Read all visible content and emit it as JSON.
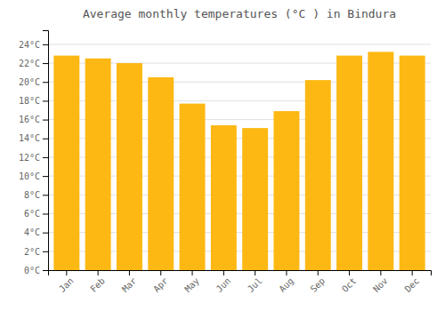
{
  "chart_data": {
    "type": "bar",
    "title": "Average monthly temperatures (°C ) in Bindura",
    "categories": [
      "Jan",
      "Feb",
      "Mar",
      "Apr",
      "May",
      "Jun",
      "Jul",
      "Aug",
      "Sep",
      "Oct",
      "Nov",
      "Dec"
    ],
    "values": [
      22.8,
      22.5,
      22.0,
      20.5,
      17.7,
      15.4,
      15.1,
      16.9,
      20.2,
      22.8,
      23.2,
      22.8
    ],
    "color": "#FDB813",
    "ylim": [
      0,
      25.5
    ],
    "yticks": [
      {
        "value": 0,
        "label": "0°C"
      },
      {
        "value": 2,
        "label": "2°C"
      },
      {
        "value": 4,
        "label": "4°C"
      },
      {
        "value": 6,
        "label": "6°C"
      },
      {
        "value": 8,
        "label": "8°C"
      },
      {
        "value": 10,
        "label": "10°C"
      },
      {
        "value": 12,
        "label": "12°C"
      },
      {
        "value": 14,
        "label": "14°C"
      },
      {
        "value": 16,
        "label": "16°C"
      },
      {
        "value": 18,
        "label": "18°C"
      },
      {
        "value": 20,
        "label": "20°C"
      },
      {
        "value": 22,
        "label": "22°C"
      },
      {
        "value": 24,
        "label": "24°C"
      }
    ],
    "grid": true
  }
}
